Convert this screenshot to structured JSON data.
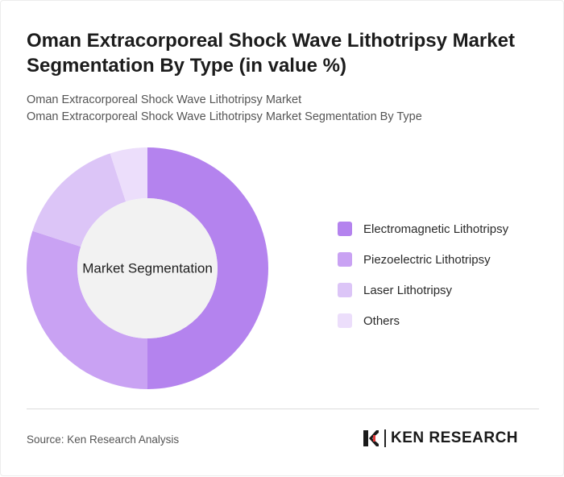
{
  "header": {
    "title": "Oman Extracorporeal Shock Wave Lithotripsy Market Segmentation By Type (in value %)",
    "subtitle_line1": "Oman Extracorporeal Shock Wave Lithotripsy Market",
    "subtitle_line2": "Oman Extracorporeal Shock Wave Lithotripsy Market Segmentation By Type"
  },
  "chart_data": {
    "type": "pie",
    "variant": "donut",
    "center_label": "Market Segmentation",
    "categories": [
      "Electromagnetic Lithotripsy",
      "Piezoelectric Lithotripsy",
      "Laser Lithotripsy",
      "Others"
    ],
    "values": [
      50,
      30,
      15,
      5
    ],
    "colors": [
      "#b483ee",
      "#c9a2f3",
      "#dcc5f7",
      "#ecdefb"
    ],
    "start_angle": "12 o'clock",
    "direction": "clockwise",
    "legend_position": "right"
  },
  "footer": {
    "source": "Source: Ken Research Analysis",
    "brand": "KEN RESEARCH"
  },
  "colors": {
    "hole": "#f2f2f2",
    "divider": "#dddddd"
  }
}
